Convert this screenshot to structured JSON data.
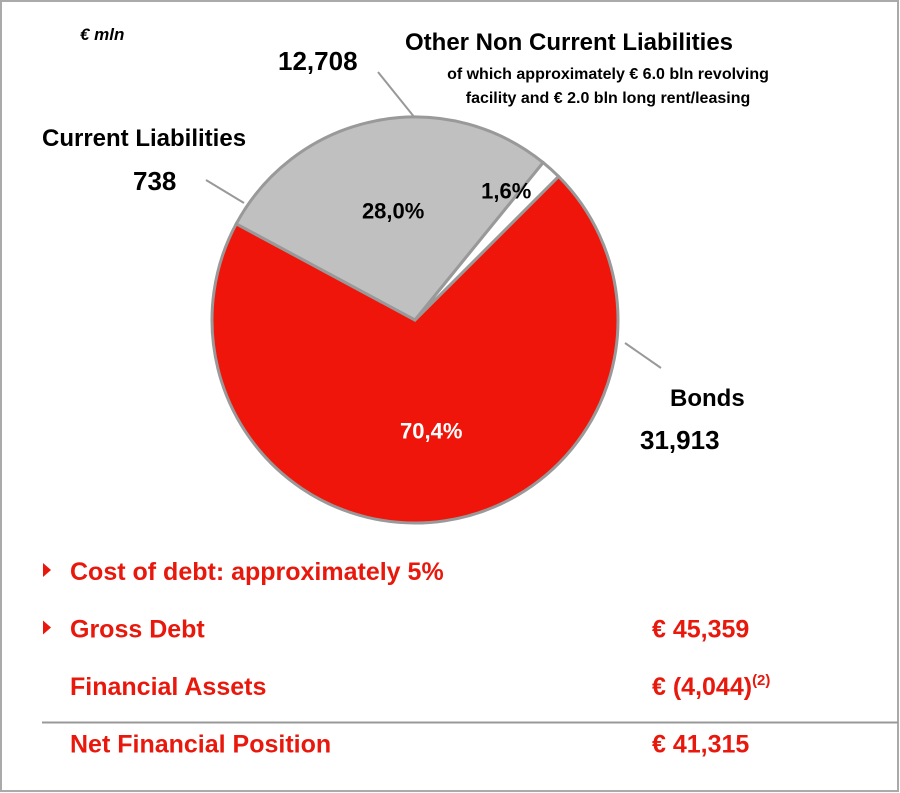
{
  "chart_data": {
    "type": "pie",
    "unit": "€ mln",
    "categories": [
      "Bonds",
      "Other Non Current Liabilities",
      "Current Liabilities"
    ],
    "values": [
      31913,
      12708,
      738
    ],
    "value_labels": [
      "31,913",
      "12,708",
      "738"
    ],
    "percentages": [
      70.4,
      28.0,
      1.6
    ],
    "percentage_labels": [
      "70,4%",
      "28,0%",
      "1,6%"
    ],
    "colors": [
      "#f0150a",
      "#c0c0c0",
      "#ffffff"
    ],
    "annotations": [
      "of which approximately € 6.0 bln revolving",
      "facility and € 2.0 bln long rent/leasing"
    ]
  },
  "summary": {
    "rows": [
      {
        "label": "Cost of debt: approximately 5%",
        "bullet": true
      },
      {
        "label": "Gross Debt",
        "value": "€ 45,359",
        "bullet": true
      },
      {
        "label": "Financial Assets",
        "value": "€ (4,044)",
        "note": "(2)"
      },
      {
        "label": "Net Financial Position",
        "value": "€ 41,315",
        "separator_above": true
      }
    ]
  }
}
